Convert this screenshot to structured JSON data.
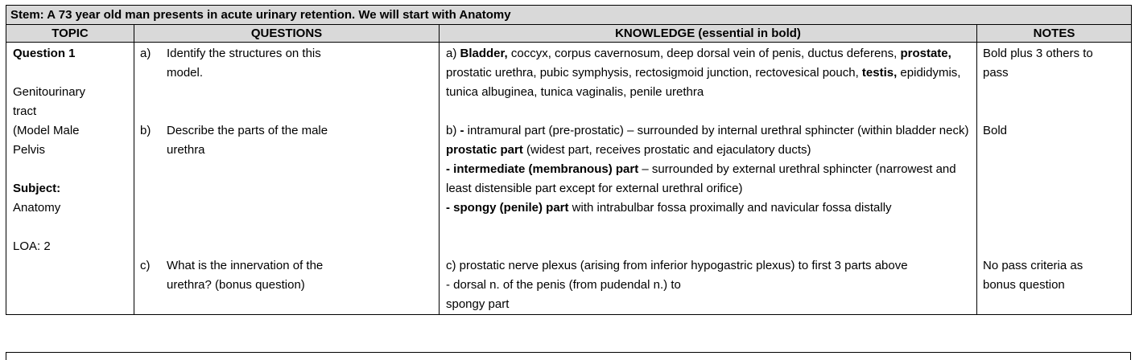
{
  "stem": "Stem: A 73 year old man presents in acute urinary retention. We will start with Anatomy",
  "headers": {
    "topic": "TOPIC",
    "questions": "QUESTIONS",
    "knowledge": "KNOWLEDGE (essential in bold)",
    "notes": "NOTES"
  },
  "topic": {
    "question": "Question 1",
    "area_line1": "Genitourinary",
    "area_line2": "tract",
    "model_line1": "(Model Male",
    "model_line2": "Pelvis",
    "subject_label": "Subject:",
    "subject_value": "Anatomy",
    "loa": "LOA: 2"
  },
  "questions": [
    {
      "letter": "a)",
      "line1": "Identify the structures on this",
      "line2": "model."
    },
    {
      "letter": "b)",
      "line1": "Describe the parts of the male",
      "line2": "urethra"
    },
    {
      "letter": "c)",
      "line1": "What is the innervation of the",
      "line2": "urethra? (bonus question)"
    }
  ],
  "knowledge": {
    "a": {
      "prefix": "a) ",
      "bladder": "Bladder,",
      "t1": " coccyx, corpus cavernosum, deep dorsal vein of penis,  ductus deferens, ",
      "prostate": "prostate,",
      "t2": " prostatic urethra, pubic symphysis, rectosigmoid junction, rectovesical pouch, ",
      "testis": "testis,",
      "t3": " epididymis,  tunica albuginea, tunica vaginalis, penile urethra"
    },
    "b": {
      "l1_prefix": "b) ",
      "l1_bold": "-",
      "l1_text": " intramural part (pre-prostatic) – surrounded by internal urethral sphincter (within bladder neck)",
      "l2_bold": "prostatic part",
      "l2_text": " (widest part, receives prostatic and ejaculatory ducts)",
      "l3_bold": "- intermediate (membranous) part",
      "l3_text": " – surrounded by external urethral sphincter (narrowest and least distensible part except for external urethral orifice)",
      "l4_bold": "- spongy (penile) part",
      "l4_text": " with intrabulbar fossa proximally and navicular fossa distally"
    },
    "c": {
      "l1": "c) prostatic nerve plexus (arising from inferior hypogastric plexus) to first 3 parts above",
      "l2": "- dorsal n. of the penis (from pudendal n.) to",
      "l3": "spongy part"
    }
  },
  "notes": {
    "a_line1": "Bold plus 3 others to",
    "a_line2": "pass",
    "b": "Bold",
    "c_line1": "No pass criteria as",
    "c_line2": "bonus question"
  }
}
